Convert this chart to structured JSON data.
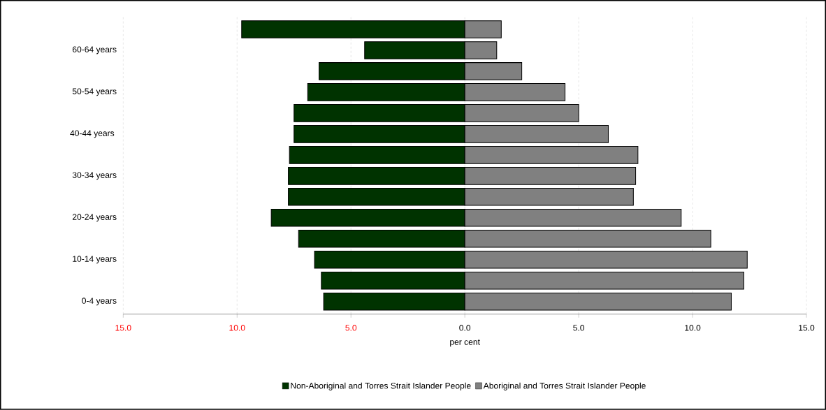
{
  "chart_data": {
    "type": "bar",
    "orientation": "horizontal",
    "xlabel": "per cent",
    "categories": [
      null,
      "60-64 years",
      null,
      "50-54 years",
      null,
      "40-44 years ",
      null,
      "30-34 years",
      null,
      "20-24 years",
      null,
      "10-14 years",
      null,
      "0-4 years"
    ],
    "series": [
      {
        "name": "Non-Aboriginal and Torres Strait Islander People",
        "color": "#003300",
        "values": [
          -9.8,
          -4.4,
          -6.4,
          -6.9,
          -7.5,
          -7.5,
          -7.7,
          -7.75,
          -7.75,
          -8.5,
          -7.3,
          -6.6,
          -6.3,
          -6.2
        ]
      },
      {
        "name": "Aboriginal and Torres Strait Islander People",
        "color": "#808080",
        "values": [
          1.6,
          1.4,
          2.5,
          4.4,
          5.0,
          6.3,
          7.6,
          7.5,
          7.4,
          9.5,
          10.8,
          12.4,
          12.25,
          11.7
        ]
      }
    ],
    "xlim": [
      -15,
      15
    ],
    "xticks": [
      {
        "value": -15,
        "label": "15.0"
      },
      {
        "value": -10,
        "label": "10.0"
      },
      {
        "value": -5,
        "label": "5.0"
      },
      {
        "value": 0,
        "label": "0.0"
      },
      {
        "value": 5,
        "label": "5.0"
      },
      {
        "value": 10,
        "label": "10.0"
      },
      {
        "value": 15,
        "label": "15.0"
      }
    ],
    "grid": "x",
    "legend": "bottom",
    "stacked": true
  }
}
